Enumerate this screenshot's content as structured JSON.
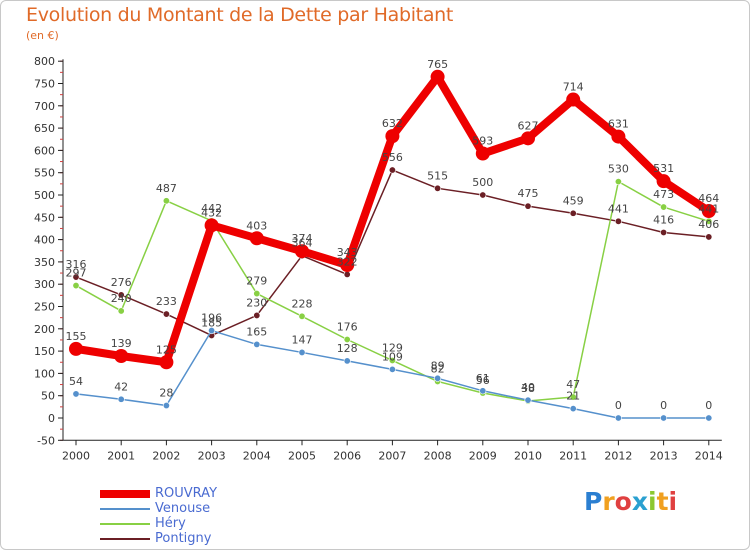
{
  "title": "Evolution du Montant de la Dette par Habitant",
  "subtitle": "(en €)",
  "logo": "Proxiti",
  "chart_data": {
    "type": "line",
    "title": "Evolution du Montant de la Dette par Habitant",
    "ylabel": "(en €)",
    "xlabel": "",
    "x": [
      "2000",
      "2001",
      "2002",
      "2003",
      "2004",
      "2005",
      "2006",
      "2007",
      "2008",
      "2009",
      "2010",
      "2011",
      "2012",
      "2013",
      "2014"
    ],
    "ylim": [
      -50,
      800
    ],
    "yticks": [
      -50,
      0,
      50,
      100,
      150,
      200,
      250,
      300,
      350,
      400,
      450,
      500,
      550,
      600,
      650,
      700,
      750,
      800
    ],
    "legend_position": "bottom-left",
    "grid": false,
    "series": [
      {
        "name": "ROUVRAY",
        "color": "#ee0000",
        "values": [
          155,
          139,
          125,
          432,
          403,
          374,
          343,
          632,
          765,
          593,
          627,
          714,
          631,
          531,
          464
        ]
      },
      {
        "name": "Venouse",
        "color": "#5590cc",
        "values": [
          54,
          42,
          28,
          196,
          165,
          147,
          128,
          109,
          89,
          61,
          40,
          21,
          0,
          0,
          0
        ]
      },
      {
        "name": "Héry",
        "color": "#88d044",
        "values": [
          297,
          240,
          487,
          442,
          279,
          228,
          176,
          129,
          82,
          56,
          38,
          47,
          530,
          473,
          441
        ]
      },
      {
        "name": "Pontigny",
        "color": "#6b1f25",
        "values": [
          316,
          276,
          233,
          185,
          230,
          364,
          322,
          556,
          515,
          500,
          475,
          459,
          441,
          416,
          406
        ]
      }
    ]
  }
}
